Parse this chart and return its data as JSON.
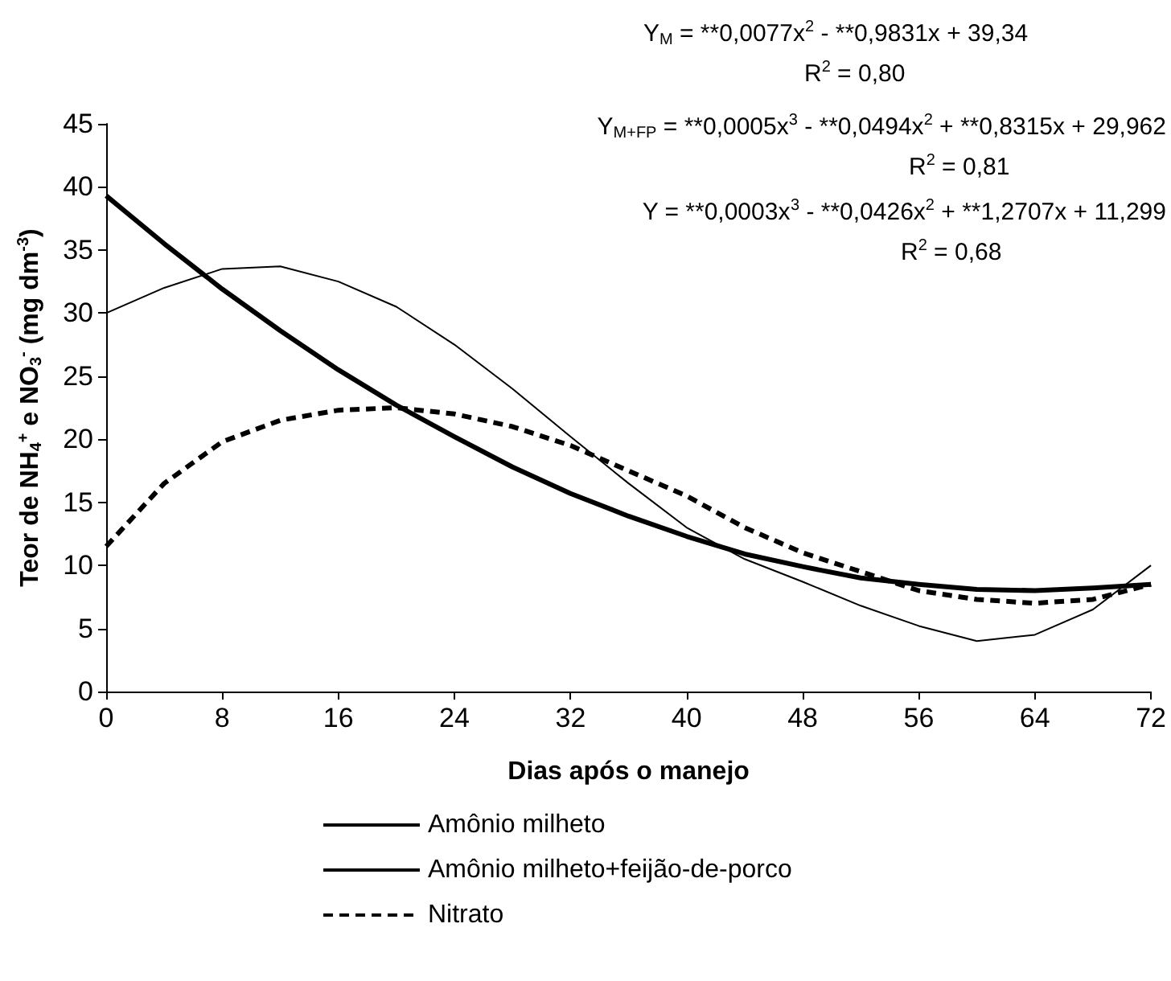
{
  "chart_data": {
    "type": "line",
    "xlabel": "Dias após o manejo",
    "ylabel": "Teor de NH$_{4}$$^{+}$ e NO$_{3}$$^{-}$ (mg dm$^{-3}$)",
    "x": [
      0,
      4,
      8,
      12,
      16,
      20,
      24,
      28,
      32,
      36,
      40,
      44,
      48,
      52,
      56,
      60,
      64,
      68,
      72
    ],
    "series": [
      {
        "name": "Amônio milheto",
        "color": "#000000",
        "line_style": "solid",
        "values": [
          39.3,
          35.5,
          31.9,
          28.6,
          25.5,
          22.7,
          20.2,
          17.8,
          15.7,
          13.9,
          12.3,
          10.9,
          9.9,
          9.0,
          8.5,
          8.1,
          8.0,
          8.2,
          8.5
        ]
      },
      {
        "name": "Amônio milheto+feijão-de-porco",
        "color": "#000000",
        "line_style": "solid",
        "values": [
          30,
          32,
          33.5,
          33.7,
          32.5,
          30.5,
          27.5,
          24,
          20.2,
          16.5,
          13,
          10.5,
          8.7,
          6.8,
          5.2,
          4,
          4.5,
          6.5,
          10
        ]
      },
      {
        "name": "Nitrato",
        "color": "#000000",
        "line_style": "dashed",
        "values": [
          11.5,
          16.5,
          19.8,
          21.5,
          22.3,
          22.5,
          22,
          21,
          19.5,
          17.5,
          15.5,
          13,
          11,
          9.5,
          8,
          7.3,
          7,
          7.3,
          8.5
        ]
      }
    ],
    "xlim": [
      0,
      72
    ],
    "xticks": [
      0,
      8,
      16,
      24,
      32,
      40,
      48,
      56,
      64,
      72
    ],
    "ylim": [
      0,
      45
    ],
    "yticks": [
      0,
      5,
      10,
      15,
      20,
      25,
      30,
      35,
      40,
      45
    ],
    "grid": false,
    "legend": "bottom",
    "marker": "none",
    "annotations": [
      "Y$_{M}$ = **0,0077x$^{2}$ - **0,9831x + 39,34",
      "R$^{2}$ = 0,80",
      "Y$_{M+FP}$ = **0,0005x$^{3}$ - **0,0494x$^{2}$ + **0,8315x + 29,962",
      "R$^{2}$ = 0,81",
      "Y = **0,0003x$^{3}$ - **0,0426x$^{2}$ + **1,2707x + 11,299",
      "R$^{2}$ = 0,68"
    ]
  }
}
